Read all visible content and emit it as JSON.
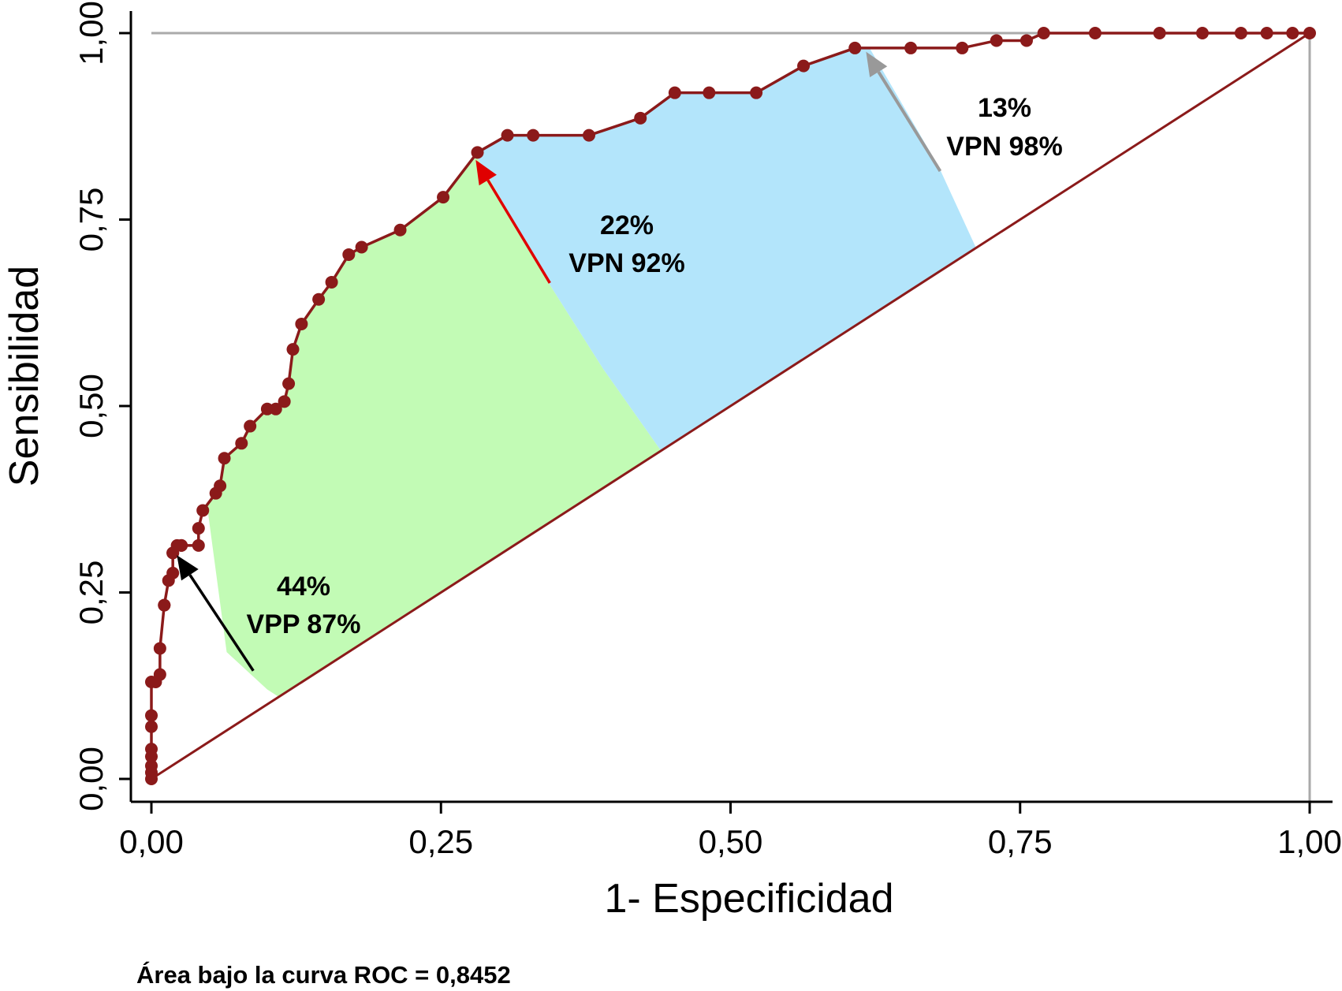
{
  "chart_data": {
    "type": "line",
    "xlabel": "1- Especificidad",
    "ylabel": "Sensibilidad",
    "xlim": [
      0,
      1
    ],
    "ylim": [
      0,
      1
    ],
    "x_ticks": [
      "0,00",
      "0,25",
      "0,50",
      "0,75",
      "1,00"
    ],
    "y_ticks": [
      "0,00",
      "0,25",
      "0,50",
      "0,75",
      "1,00"
    ],
    "grid": false,
    "colors": {
      "curve": "#8b1a1a",
      "green_region": "#c2fbb5",
      "blue_region": "#b3e5fb",
      "reference": "#aaaaaa"
    },
    "series": [
      {
        "x": [
          0,
          0,
          0,
          0,
          0,
          0,
          0,
          0,
          0.0037,
          0.0074,
          0.0074,
          0.0111,
          0.0111,
          0.0148,
          0.0185,
          0.0185,
          0.0185,
          0.0222,
          0.0259,
          0.0259,
          0.0407,
          0.0407,
          0.0444,
          0.0556,
          0.0593,
          0.063,
          0.0778,
          0.0852,
          0.1,
          0.1074,
          0.1148,
          0.1185,
          0.1222,
          0.1296,
          0.1444,
          0.1556,
          0.1704,
          0.1815,
          0.2148,
          0.2519,
          0.2815,
          0.3074,
          0.3296,
          0.3778,
          0.4222,
          0.4519,
          0.4815,
          0.5222,
          0.563,
          0.6074,
          0.6556,
          0.7,
          0.7296,
          0.7556,
          0.7704,
          0.8148,
          0.8704,
          0.9074,
          0.9407,
          0.963,
          0.9852,
          1.0
        ],
        "y": [
          0,
          0.0085,
          0.0175,
          0.03,
          0.04,
          0.07,
          0.085,
          0.13,
          0.13,
          0.14,
          0.175,
          0.233,
          0.233,
          0.266,
          0.276,
          0.303,
          0.303,
          0.313,
          0.313,
          0.313,
          0.313,
          0.336,
          0.36,
          0.383,
          0.393,
          0.43,
          0.45,
          0.473,
          0.496,
          0.496,
          0.506,
          0.53,
          0.576,
          0.61,
          0.643,
          0.666,
          0.703,
          0.713,
          0.736,
          0.78,
          0.84,
          0.863,
          0.863,
          0.863,
          0.886,
          0.92,
          0.92,
          0.92,
          0.956,
          0.98,
          0.98,
          0.98,
          0.99,
          0.99,
          1.0,
          1.0,
          1.0,
          1.0,
          1.0,
          1.0,
          1.0,
          1.0
        ]
      }
    ],
    "annotations": [
      {
        "line1": "44%",
        "line2": "VPP 87%"
      },
      {
        "line1": "22%",
        "line2": "VPN 92%"
      },
      {
        "line1": "13%",
        "line2": "VPN 98%"
      }
    ],
    "footer": "Área bajo la curva ROC = 0,8452"
  }
}
